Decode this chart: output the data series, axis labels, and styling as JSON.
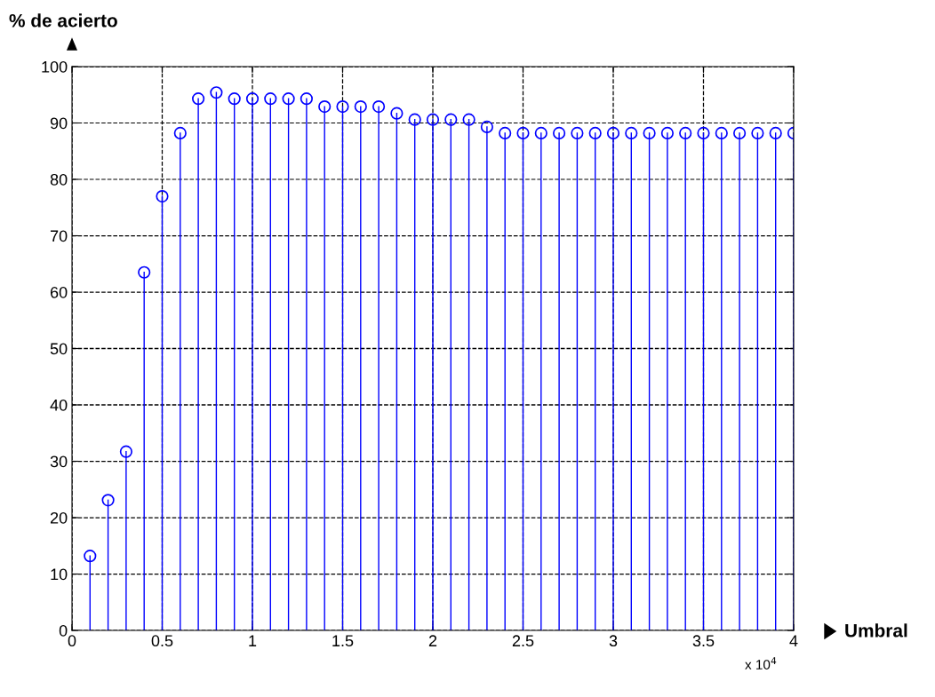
{
  "chart_data": {
    "type": "lollipop",
    "xlabel": "Umbral",
    "ylabel": "% de acierto",
    "x": [
      0.1,
      0.2,
      0.3,
      0.4,
      0.5,
      0.6,
      0.7,
      0.8,
      0.9,
      1.0,
      1.1,
      1.2,
      1.3,
      1.4,
      1.5,
      1.6,
      1.7,
      1.8,
      1.9,
      2.0,
      2.1,
      2.2,
      2.3,
      2.4,
      2.5,
      2.6,
      2.7,
      2.8,
      2.9,
      3.0,
      3.1,
      3.2,
      3.3,
      3.4,
      3.5,
      3.6,
      3.7,
      3.8,
      3.9,
      4.0
    ],
    "series": [
      {
        "color": "#0000ff",
        "values": [
          13.2,
          23.1,
          31.7,
          63.5,
          77,
          88.2,
          94.3,
          95.4,
          94.3,
          94.3,
          94.3,
          94.3,
          94.3,
          92.9,
          92.9,
          92.9,
          92.9,
          91.7,
          90.6,
          90.6,
          90.6,
          90.6,
          89.3,
          88.2,
          88.2,
          88.2,
          88.2,
          88.2,
          88.2,
          88.2,
          88.2,
          88.2,
          88.2,
          88.2,
          88.2,
          88.2,
          88.2,
          88.2,
          88.2,
          88.2
        ]
      }
    ],
    "xlim": [
      0,
      4
    ],
    "xticks": [
      0,
      0.5,
      1,
      1.5,
      2,
      2.5,
      3,
      3.5,
      4
    ],
    "ylim": [
      0,
      100
    ],
    "yticks": [
      0,
      10,
      20,
      30,
      40,
      50,
      60,
      70,
      80,
      90,
      100
    ],
    "grid": true,
    "marker": "circle",
    "line_style": "solid",
    "annotations": [
      "x 10$^{4}$"
    ]
  }
}
